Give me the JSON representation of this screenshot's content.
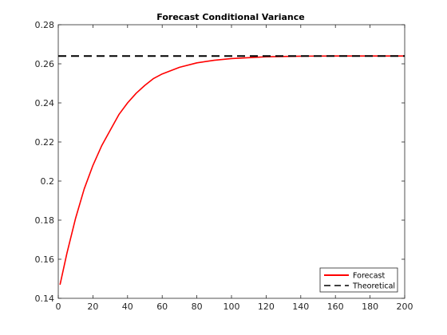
{
  "chart_data": {
    "type": "line",
    "title": "Forecast Conditional Variance",
    "xlabel": "",
    "ylabel": "",
    "xlim": [
      0,
      200
    ],
    "ylim": [
      0.14,
      0.28
    ],
    "x_ticks": [
      0,
      20,
      40,
      60,
      80,
      100,
      120,
      140,
      160,
      180,
      200
    ],
    "y_ticks": [
      0.14,
      0.16,
      0.18,
      0.2,
      0.22,
      0.24,
      0.26,
      0.28
    ],
    "y_tick_labels": [
      "0.14",
      "0.16",
      "0.18",
      "0.2",
      "0.22",
      "0.24",
      "0.26",
      "0.28"
    ],
    "grid": false,
    "legend_position": "bottom-right",
    "series": [
      {
        "name": "Forecast",
        "style": "solid",
        "color": "#ff0000",
        "x": [
          1,
          5,
          10,
          15,
          20,
          25,
          30,
          35,
          40,
          45,
          50,
          55,
          60,
          70,
          80,
          90,
          100,
          120,
          140,
          160,
          180,
          200
        ],
        "y": [
          0.147,
          0.163,
          0.181,
          0.196,
          0.208,
          0.218,
          0.226,
          0.234,
          0.24,
          0.245,
          0.249,
          0.2525,
          0.2548,
          0.2582,
          0.2605,
          0.2618,
          0.2627,
          0.2636,
          0.2639,
          0.264,
          0.264,
          0.264
        ]
      },
      {
        "name": "Theoretical",
        "style": "dashed",
        "color": "#000000",
        "x": [
          0,
          200
        ],
        "y": [
          0.264,
          0.264
        ]
      }
    ]
  }
}
